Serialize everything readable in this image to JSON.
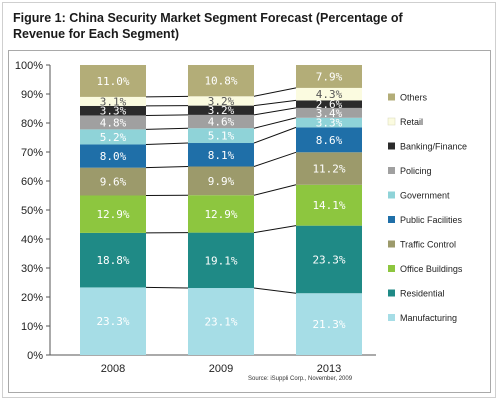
{
  "title": "Figure 1: China Security Market Segment Forecast (Percentage of Revenue for Each Segment)",
  "source": "Source: iSuppli Corp., November, 2009",
  "chart_data": {
    "type": "bar",
    "stacked": true,
    "percent": true,
    "categories": [
      "2008",
      "2009",
      "2013"
    ],
    "ylim": [
      0,
      100
    ],
    "yticks": [
      "0%",
      "10%",
      "20%",
      "30%",
      "40%",
      "50%",
      "60%",
      "70%",
      "80%",
      "90%",
      "100%"
    ],
    "legend_position": "right",
    "series": [
      {
        "name": "Manufacturing",
        "color": "#a6dde6",
        "label_color": "#ffffff",
        "values": [
          23.3,
          23.1,
          21.3
        ],
        "labels": [
          "23.3%",
          "23.1%",
          "21.3%"
        ]
      },
      {
        "name": "Residential",
        "color": "#1f8a86",
        "label_color": "#ffffff",
        "values": [
          18.8,
          19.1,
          23.3
        ],
        "labels": [
          "18.8%",
          "19.1%",
          "23.3%"
        ]
      },
      {
        "name": "Office Buildings",
        "color": "#8dc63f",
        "label_color": "#ffffff",
        "values": [
          12.9,
          12.9,
          14.1
        ],
        "labels": [
          "12.9%",
          "12.9%",
          "14.1%"
        ]
      },
      {
        "name": "Traffic Control",
        "color": "#9c9a6b",
        "label_color": "#ffffff",
        "values": [
          9.6,
          9.9,
          11.2
        ],
        "labels": [
          "9.6%",
          "9.9%",
          "11.2%"
        ]
      },
      {
        "name": "Public Facilities",
        "color": "#1f6fa8",
        "label_color": "#ffffff",
        "values": [
          8.0,
          8.1,
          8.6
        ],
        "labels": [
          "8.0%",
          "8.1%",
          "8.6%"
        ]
      },
      {
        "name": "Government",
        "color": "#8fd3d8",
        "label_color": "#ffffff",
        "values": [
          5.2,
          5.1,
          3.3
        ],
        "labels": [
          "5.2%",
          "5.1%",
          "3.3%"
        ]
      },
      {
        "name": "Policing",
        "color": "#a0a0a0",
        "label_color": "#ffffff",
        "values": [
          4.8,
          4.6,
          3.4
        ],
        "labels": [
          "4.8%",
          "4.6%",
          "3.4%"
        ]
      },
      {
        "name": "Banking/Finance",
        "color": "#2b2b2b",
        "label_color": "#ffffff",
        "values": [
          3.3,
          3.2,
          2.6
        ],
        "labels": [
          "3.3%",
          "3.2%",
          "2.6%"
        ]
      },
      {
        "name": "Retail",
        "color": "#fbfbe0",
        "label_color": "#555555",
        "values": [
          3.1,
          3.2,
          4.3
        ],
        "labels": [
          "3.1%",
          "3.2%",
          "4.3%"
        ]
      },
      {
        "name": "Others",
        "color": "#b3ad78",
        "label_color": "#ffffff",
        "values": [
          11.0,
          10.8,
          7.9
        ],
        "labels": [
          "11.0%",
          "10.8%",
          "7.9%"
        ]
      }
    ]
  }
}
